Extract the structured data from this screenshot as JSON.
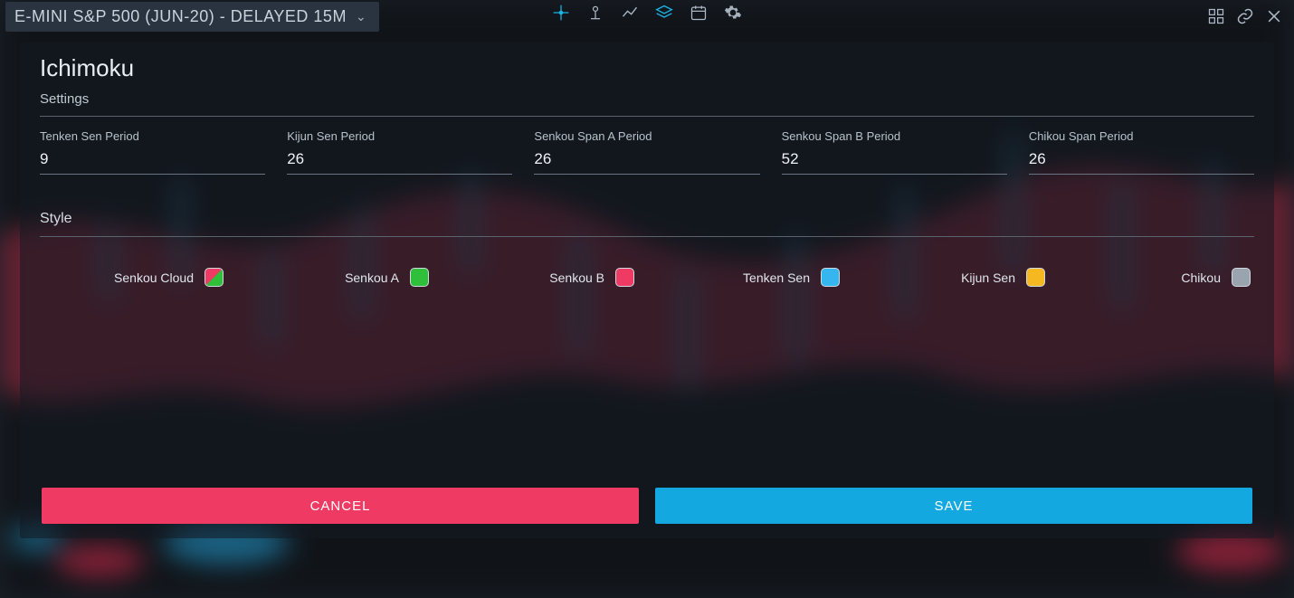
{
  "colors": {
    "background": "#1a2028",
    "panel_overlay": "rgba(20,26,34,0.55)",
    "text_primary": "#e9eef3",
    "text_secondary": "#c0c9d2",
    "separator": "#5a636d",
    "input_underline": "#6a7480",
    "icon_default": "#aebac7",
    "icon_accent": "#19b6e9",
    "instrument_bg": "#2a3440"
  },
  "header": {
    "instrument": "E-MINI S&P 500 (JUN-20) - DELAYED 15M",
    "center_icons": [
      "crosshair",
      "drawing-tool",
      "chart-line",
      "layers",
      "calendar",
      "gear"
    ],
    "right_icons": [
      "grid-view",
      "link",
      "close"
    ]
  },
  "modal": {
    "title": "Ichimoku",
    "settings_label": "Settings",
    "style_label": "Style",
    "fields": [
      {
        "label": "Tenken Sen Period",
        "value": "9"
      },
      {
        "label": "Kijun Sen Period",
        "value": "26"
      },
      {
        "label": "Senkou Span A Period",
        "value": "26"
      },
      {
        "label": "Senkou Span B Period",
        "value": "52"
      },
      {
        "label": "Chikou Span Period",
        "value": "26"
      }
    ],
    "style_items": [
      {
        "label": "Senkou Cloud",
        "swatch": {
          "type": "split",
          "color_a": "#ef3b63",
          "color_b": "#2fbf3a"
        }
      },
      {
        "label": "Senkou A",
        "swatch": {
          "type": "solid",
          "color": "#2fbf3a"
        }
      },
      {
        "label": "Senkou B",
        "swatch": {
          "type": "solid",
          "color": "#ef3b63"
        }
      },
      {
        "label": "Tenken Sen",
        "swatch": {
          "type": "solid",
          "color": "#35b6ef"
        }
      },
      {
        "label": "Kijun Sen",
        "swatch": {
          "type": "solid",
          "color": "#f5b820"
        }
      },
      {
        "label": "Chikou",
        "swatch": {
          "type": "solid",
          "color": "#9aa4ae"
        }
      }
    ]
  },
  "footer": {
    "cancel_label": "CANCEL",
    "save_label": "SAVE",
    "cancel_color": "#ef3b63",
    "save_color": "#13a9e0"
  },
  "bg_chart": {
    "cloud_top_color": "#ef3b63",
    "cloud_bot_color": "#b43050",
    "candle_up": "#4fb9e8",
    "candle_dn": "#2a3a48",
    "blob_a": "#2fb3ef",
    "blob_b": "#ef3b63"
  }
}
